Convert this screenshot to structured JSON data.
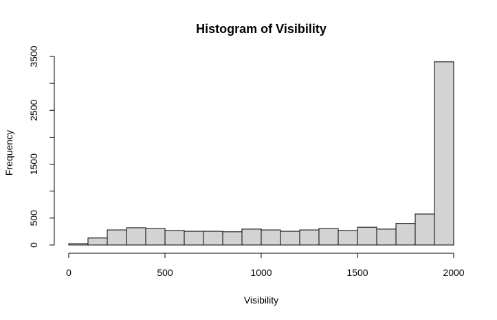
{
  "chart_data": {
    "type": "bar",
    "title": "Histogram of Visibility",
    "xlabel": "Visibility",
    "ylabel": "Frequency",
    "bin_edges": [
      0,
      100,
      200,
      300,
      400,
      500,
      600,
      700,
      800,
      900,
      1000,
      1100,
      1200,
      1300,
      1400,
      1500,
      1600,
      1700,
      1800,
      1900,
      2000
    ],
    "values": [
      25,
      130,
      280,
      320,
      305,
      270,
      255,
      255,
      245,
      295,
      280,
      255,
      280,
      305,
      270,
      330,
      295,
      400,
      575,
      3400
    ],
    "xlim": [
      0,
      2000
    ],
    "ylim": [
      0,
      3500
    ],
    "x_ticks": [
      0,
      500,
      1000,
      1500,
      2000
    ],
    "x_tick_labels": [
      "0",
      "500",
      "1000",
      "1500",
      "2000"
    ],
    "y_ticks": [
      0,
      500,
      1000,
      1500,
      2000,
      2500,
      3000,
      3500
    ],
    "y_tick_labels": [
      "0",
      "500",
      "",
      "1500",
      "",
      "2500",
      "",
      "3500"
    ],
    "grid": false,
    "bar_color": "#d3d3d3"
  }
}
